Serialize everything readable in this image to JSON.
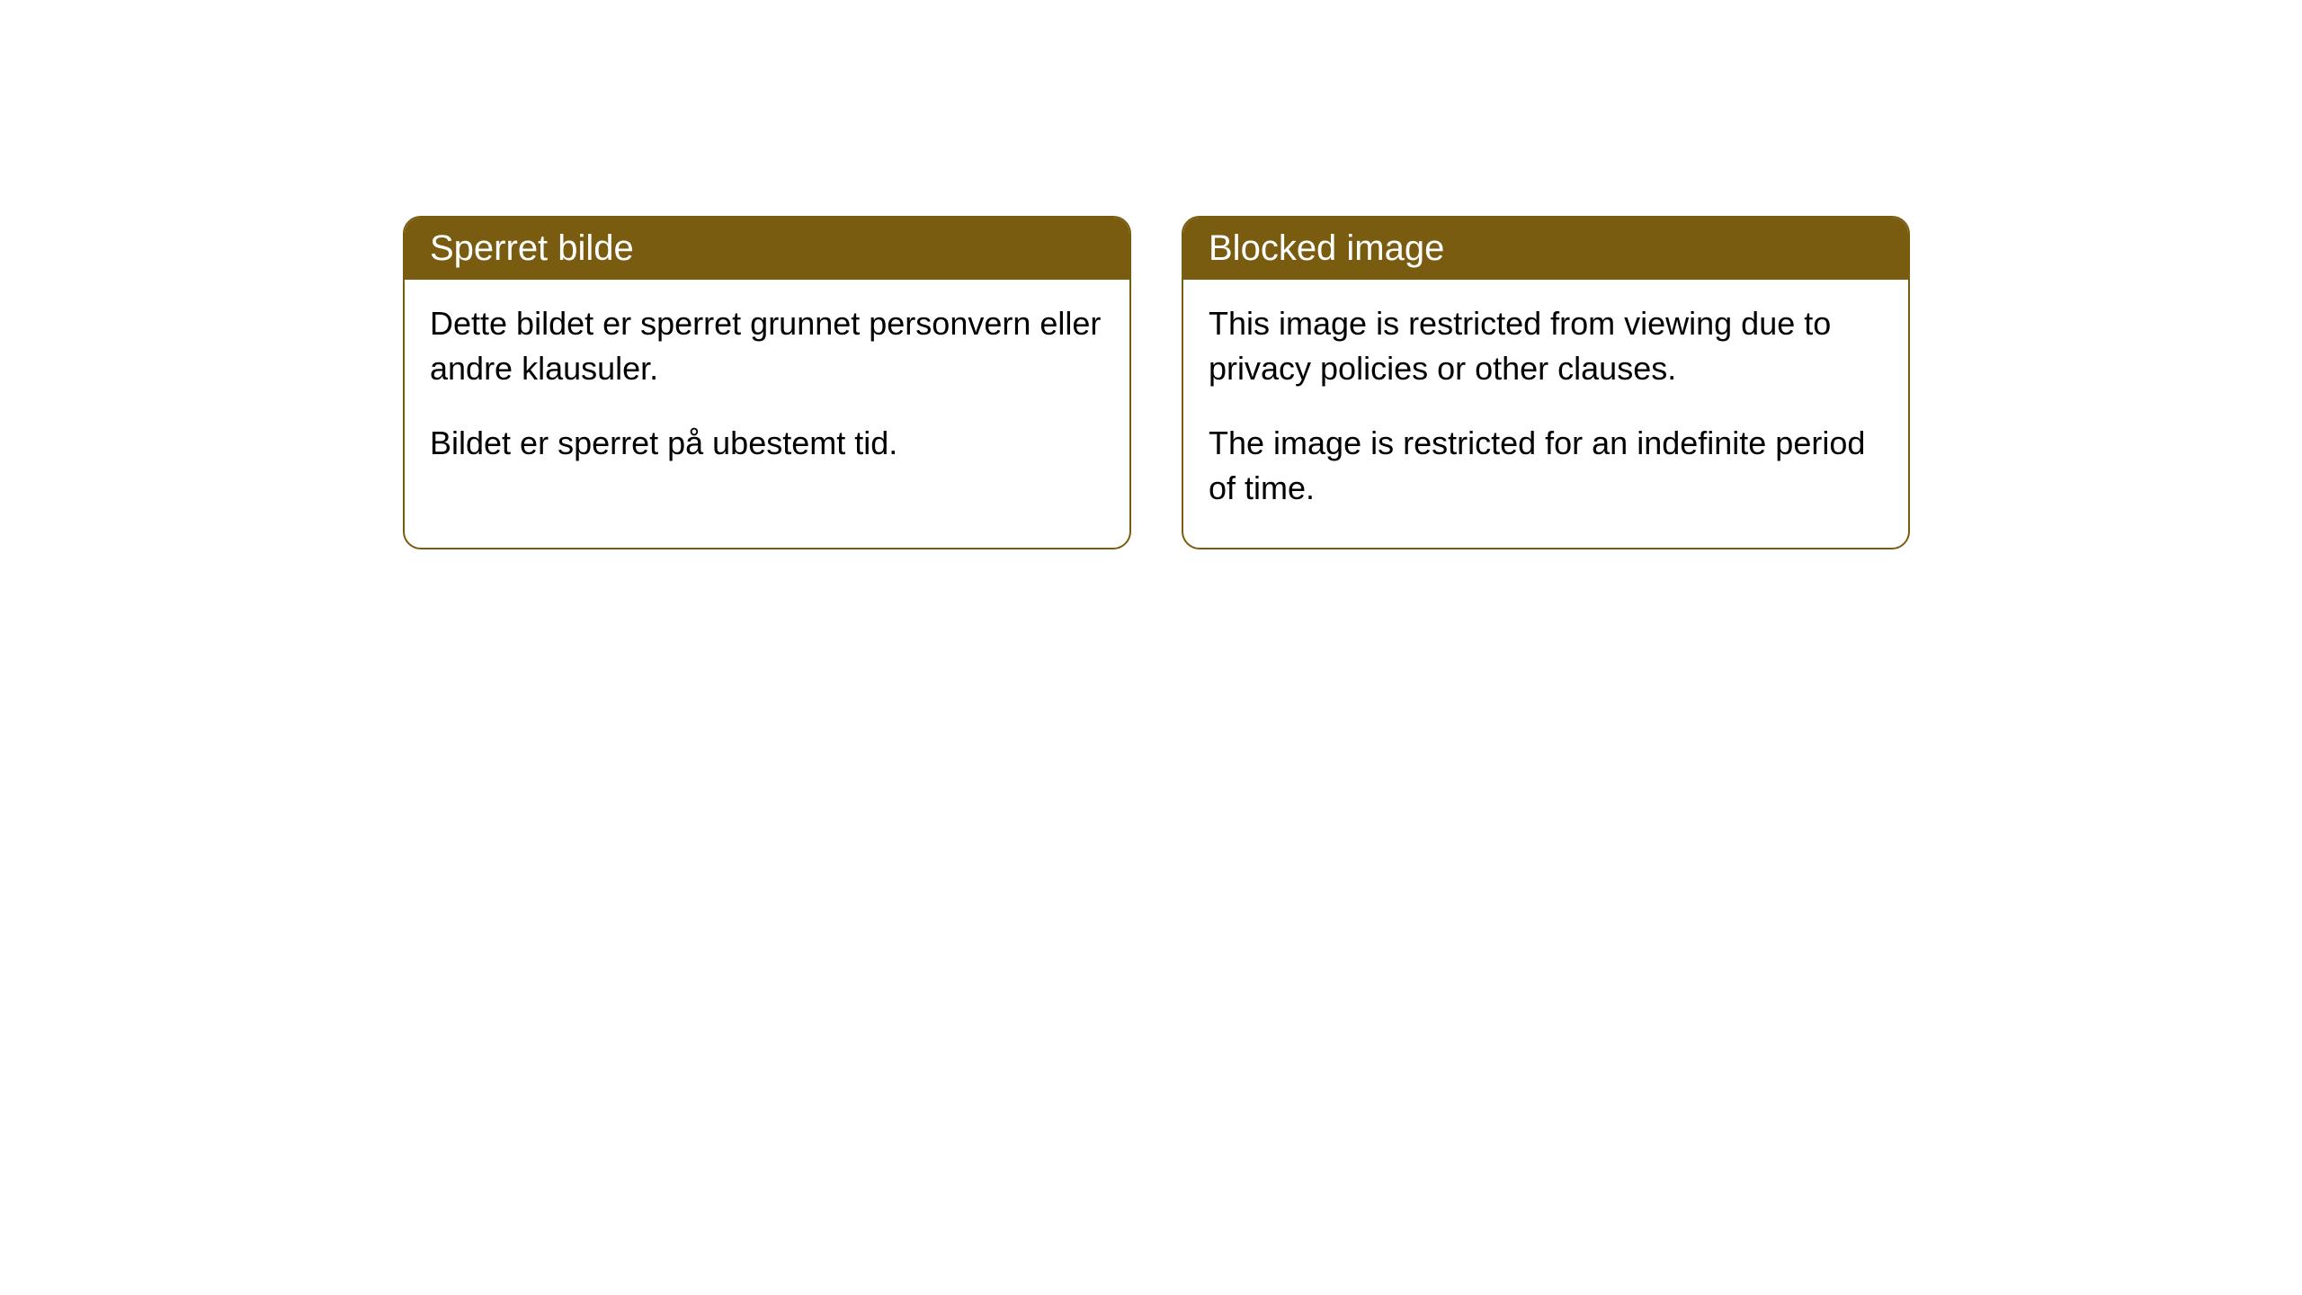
{
  "cards": [
    {
      "title": "Sperret bilde",
      "paragraph1": "Dette bildet er sperret grunnet personvern eller andre klausuler.",
      "paragraph2": "Bildet er sperret på ubestemt tid."
    },
    {
      "title": "Blocked image",
      "paragraph1": "This image is restricted from viewing due to privacy policies or other clauses.",
      "paragraph2": "The image is restricted for an indefinite period of time."
    }
  ],
  "styles": {
    "header_bg_color": "#7a5c10",
    "header_text_color": "#ffffff",
    "border_color": "#7a5c10",
    "body_bg_color": "#ffffff",
    "body_text_color": "#000000",
    "border_radius": 20,
    "header_fontsize": 40,
    "body_fontsize": 36
  }
}
